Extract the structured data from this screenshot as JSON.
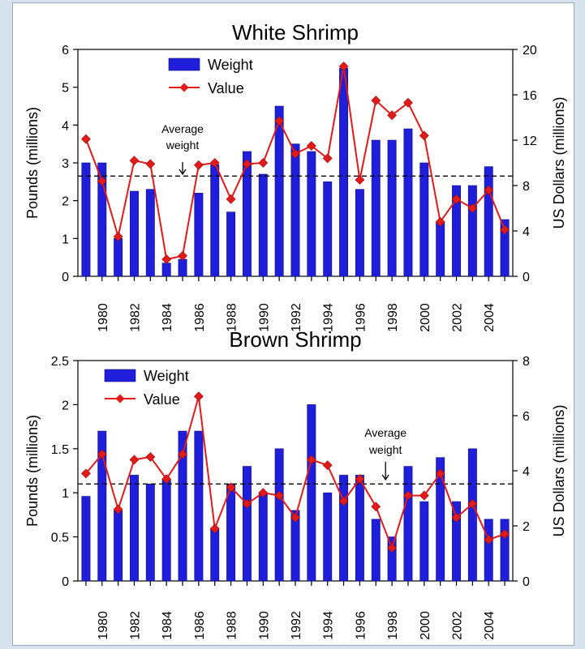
{
  "chart_data": [
    {
      "type": "bar",
      "title": "White Shrimp",
      "ylabel": "Pounds (millions)",
      "y2label": "US Dollars (millions)",
      "xlim": [
        1978.5,
        2005.5
      ],
      "ylim": [
        0,
        6
      ],
      "y2lim": [
        0,
        20
      ],
      "yticks": [
        0,
        1,
        2,
        3,
        4,
        5,
        6
      ],
      "y2ticks": [
        0,
        4,
        8,
        12,
        16,
        20
      ],
      "xticks": [
        "1980",
        "1982",
        "1984",
        "1986",
        "1988",
        "1990",
        "1992",
        "1994",
        "1996",
        "1998",
        "2000",
        "2002",
        "2004"
      ],
      "legend_position": "top-left",
      "years": [
        1979,
        1980,
        1981,
        1982,
        1983,
        1984,
        1985,
        1986,
        1987,
        1988,
        1989,
        1990,
        1991,
        1992,
        1993,
        1994,
        1995,
        1996,
        1997,
        1998,
        1999,
        2000,
        2001,
        2002,
        2003,
        2004,
        2005
      ],
      "series": [
        {
          "name": "Weight",
          "axis": "left",
          "color": "#1e1edb",
          "values": [
            3.0,
            3.0,
            1.0,
            2.25,
            2.3,
            0.35,
            0.45,
            2.2,
            2.95,
            1.7,
            3.3,
            2.7,
            4.5,
            3.5,
            3.3,
            2.5,
            5.5,
            2.3,
            3.6,
            3.6,
            3.9,
            3.0,
            1.45,
            2.4,
            2.4,
            2.9,
            1.5
          ]
        },
        {
          "name": "Value",
          "axis": "right",
          "color": "#e21a1a",
          "values": [
            12.1,
            8.4,
            3.5,
            10.2,
            9.9,
            1.5,
            1.8,
            9.8,
            10.0,
            6.8,
            9.9,
            10.0,
            13.7,
            10.8,
            11.5,
            10.4,
            18.5,
            8.5,
            15.5,
            14.2,
            15.3,
            12.4,
            4.8,
            6.8,
            6.0,
            7.6,
            4.1
          ]
        }
      ],
      "average_weight": 2.65,
      "annotation": "Average weight",
      "annotation_year": 1985.0
    },
    {
      "type": "bar",
      "title": "Brown Shrimp",
      "ylabel": "Pounds (millions)",
      "y2label": "US Dollars (millions)",
      "xlim": [
        1978.5,
        2005.5
      ],
      "ylim": [
        0,
        2.5
      ],
      "y2lim": [
        0,
        8
      ],
      "yticks": [
        0,
        0.5,
        1,
        1.5,
        2,
        2.5
      ],
      "y2ticks": [
        0,
        2,
        4,
        6,
        8
      ],
      "xticks": [
        "1980",
        "1982",
        "1984",
        "1986",
        "1988",
        "1990",
        "1992",
        "1994",
        "1996",
        "1998",
        "2000",
        "2002",
        "2004"
      ],
      "legend_position": "top-left",
      "years": [
        1979,
        1980,
        1981,
        1982,
        1983,
        1984,
        1985,
        1986,
        1987,
        1988,
        1989,
        1990,
        1991,
        1992,
        1993,
        1994,
        1995,
        1996,
        1997,
        1998,
        1999,
        2000,
        2001,
        2002,
        2003,
        2004,
        2005
      ],
      "series": [
        {
          "name": "Weight",
          "axis": "left",
          "color": "#1e1edb",
          "values": [
            0.96,
            1.7,
            0.8,
            1.2,
            1.1,
            1.15,
            1.7,
            1.7,
            0.6,
            1.1,
            1.3,
            1.0,
            1.5,
            0.8,
            2.0,
            1.0,
            1.2,
            1.2,
            0.7,
            0.5,
            1.3,
            0.9,
            1.4,
            0.9,
            1.5,
            0.7,
            0.7
          ]
        },
        {
          "name": "Value",
          "axis": "right",
          "color": "#e21a1a",
          "values": [
            3.9,
            4.6,
            2.6,
            4.4,
            4.5,
            3.7,
            4.6,
            6.7,
            1.9,
            3.4,
            2.8,
            3.2,
            3.1,
            2.3,
            4.4,
            4.2,
            2.9,
            3.7,
            2.7,
            1.2,
            3.1,
            3.1,
            3.9,
            2.3,
            2.8,
            1.5,
            1.7
          ]
        }
      ],
      "average_weight": 1.1,
      "annotation": "Average weight",
      "annotation_year": 1997.6
    }
  ]
}
